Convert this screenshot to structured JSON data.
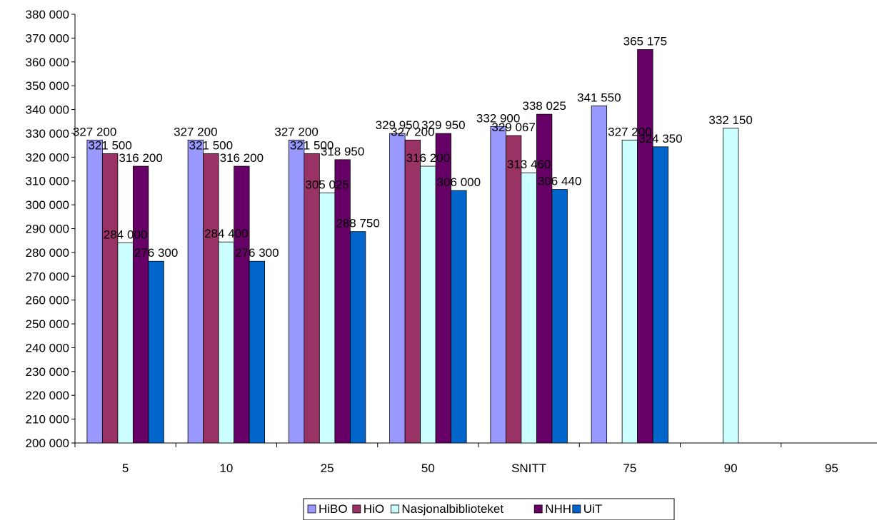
{
  "chart_data": {
    "type": "bar",
    "title": "",
    "xlabel": "",
    "ylabel": "",
    "ylim": [
      200000,
      380000
    ],
    "ytick_step": 10000,
    "yticks": [
      "200 000",
      "210 000",
      "220 000",
      "230 000",
      "240 000",
      "250 000",
      "260 000",
      "270 000",
      "280 000",
      "290 000",
      "300 000",
      "310 000",
      "320 000",
      "330 000",
      "340 000",
      "350 000",
      "360 000",
      "370 000",
      "380 000"
    ],
    "categories": [
      "5",
      "10",
      "25",
      "50",
      "SNITT",
      "75",
      "90",
      "95"
    ],
    "legend_position": "bottom",
    "grid": false,
    "series": [
      {
        "name": "HiBO",
        "color": "#9999FF",
        "values": [
          327200,
          327200,
          327200,
          329950,
          332900,
          341550,
          null,
          null
        ],
        "labels": [
          "327 200",
          "327 200",
          "327 200",
          "329 950",
          "332 900",
          "341 550",
          "",
          ""
        ]
      },
      {
        "name": "HiO",
        "color": "#993366",
        "values": [
          321500,
          321500,
          321500,
          327200,
          329067,
          null,
          null,
          null
        ],
        "labels": [
          "321 500",
          "321 500",
          "321 500",
          "327 200",
          "329 067",
          "",
          "",
          ""
        ]
      },
      {
        "name": "Nasjonalbiblioteket",
        "color": "#CCFFFF",
        "values": [
          284000,
          284400,
          305025,
          316200,
          313460,
          327200,
          332150,
          null
        ],
        "labels": [
          "284 000",
          "284 400",
          "305 025",
          "316 200",
          "313 460",
          "327 200",
          "332 150",
          ""
        ]
      },
      {
        "name": "NHH",
        "color": "#660066",
        "values": [
          316200,
          316200,
          318950,
          329950,
          338025,
          365175,
          null,
          null
        ],
        "labels": [
          "316 200",
          "316 200",
          "318 950",
          "329 950",
          "338 025",
          "365 175",
          "",
          ""
        ]
      },
      {
        "name": "UiT",
        "color": "#0066CC",
        "values": [
          276300,
          276300,
          288750,
          306000,
          306440,
          324350,
          null,
          null
        ],
        "labels": [
          "276 300",
          "276 300",
          "288 750",
          "306 000",
          "306 440",
          "324 350",
          "",
          ""
        ]
      }
    ]
  }
}
